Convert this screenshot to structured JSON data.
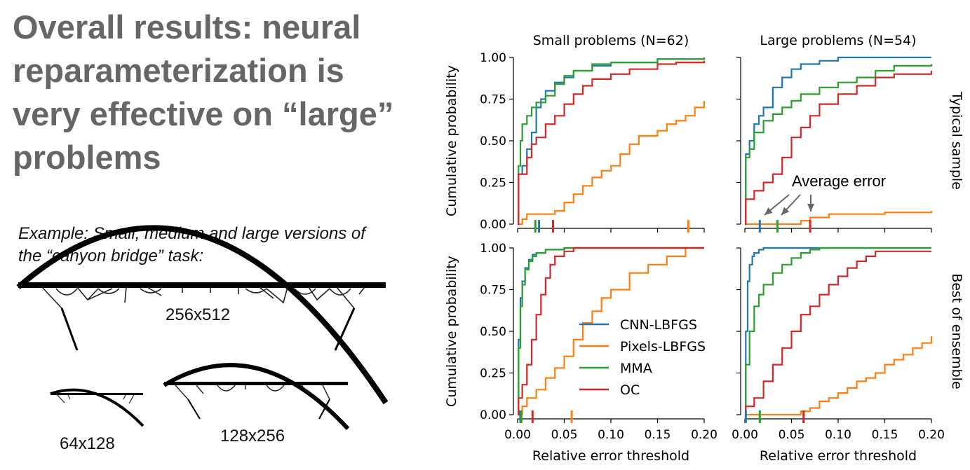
{
  "slide": {
    "title": "Overall results: neural reparameterization is very effective on “large” problems",
    "caption": "Example: Small, medium and large versions of the “canyon bridge” task:",
    "bridges": [
      {
        "label": "256x512"
      },
      {
        "label": "64x128"
      },
      {
        "label": "128x256"
      }
    ]
  },
  "chart_data": {
    "type": "line",
    "subtype": "step-cdf-grid",
    "column_titles": [
      "Small problems (N=62)",
      "Large problems (N=54)"
    ],
    "row_titles": [
      "Typical sample",
      "Best of ensemble"
    ],
    "xlabel": "Relative error threshold",
    "ylabel": "Cumulative probability",
    "xlim": [
      0,
      0.2
    ],
    "ylim": [
      0,
      1
    ],
    "xticks": [
      "0.00",
      "0.05",
      "0.10",
      "0.15",
      "0.20"
    ],
    "yticks": [
      "0.00",
      "0.25",
      "0.50",
      "0.75",
      "1.00"
    ],
    "legend": {
      "location": "lower-right of bottom-left panel",
      "entries": [
        "CNN-LBFGS",
        "Pixels-LBFGS",
        "MMA",
        "OC"
      ]
    },
    "colors": {
      "CNN-LBFGS": "#1f77b4",
      "Pixels-LBFGS": "#ff7f0e",
      "MMA": "#2ca02c",
      "OC": "#d62728"
    },
    "annotation": {
      "text": "Average error",
      "panel": "top-right"
    },
    "panels": [
      {
        "row": "Typical sample",
        "column": "Small problems (N=62)",
        "average_error": {
          "CNN-LBFGS": 0.023,
          "Pixels-LBFGS": 0.183,
          "MMA": 0.019,
          "OC": 0.038
        },
        "series": [
          {
            "name": "CNN-LBFGS",
            "x": [
              0,
              0.001,
              0.005,
              0.01,
              0.015,
              0.02,
              0.025,
              0.03,
              0.04,
              0.05,
              0.06,
              0.08,
              0.1,
              0.15,
              0.2
            ],
            "y": [
              0,
              0.3,
              0.35,
              0.45,
              0.55,
              0.7,
              0.75,
              0.8,
              0.85,
              0.88,
              0.92,
              0.95,
              0.97,
              0.99,
              1.0
            ]
          },
          {
            "name": "Pixels-LBFGS",
            "x": [
              0,
              0.005,
              0.01,
              0.02,
              0.04,
              0.05,
              0.06,
              0.07,
              0.08,
              0.09,
              0.1,
              0.11,
              0.12,
              0.13,
              0.14,
              0.15,
              0.16,
              0.17,
              0.18,
              0.19,
              0.2
            ],
            "y": [
              0,
              0.03,
              0.06,
              0.06,
              0.08,
              0.13,
              0.18,
              0.23,
              0.28,
              0.32,
              0.35,
              0.42,
              0.48,
              0.53,
              0.53,
              0.56,
              0.6,
              0.62,
              0.65,
              0.7,
              0.74
            ]
          },
          {
            "name": "MMA",
            "x": [
              0,
              0.001,
              0.003,
              0.005,
              0.01,
              0.015,
              0.02,
              0.03,
              0.04,
              0.05,
              0.06,
              0.08,
              0.1,
              0.15,
              0.2
            ],
            "y": [
              0,
              0.35,
              0.5,
              0.6,
              0.65,
              0.7,
              0.73,
              0.77,
              0.84,
              0.89,
              0.92,
              0.96,
              0.97,
              0.99,
              1.0
            ]
          },
          {
            "name": "OC",
            "x": [
              0,
              0.001,
              0.01,
              0.015,
              0.02,
              0.03,
              0.04,
              0.05,
              0.06,
              0.07,
              0.08,
              0.1,
              0.12,
              0.15,
              0.17,
              0.2
            ],
            "y": [
              0,
              0.3,
              0.4,
              0.48,
              0.52,
              0.6,
              0.65,
              0.72,
              0.78,
              0.83,
              0.87,
              0.9,
              0.93,
              0.96,
              0.97,
              0.98
            ]
          }
        ]
      },
      {
        "row": "Typical sample",
        "column": "Large problems (N=54)",
        "average_error": {
          "CNN-LBFGS": 0.016,
          "Pixels-LBFGS": 0.07,
          "MMA": 0.035,
          "OC": 0.07
        },
        "series": [
          {
            "name": "CNN-LBFGS",
            "x": [
              0,
              0.001,
              0.005,
              0.01,
              0.015,
              0.02,
              0.03,
              0.04,
              0.05,
              0.06,
              0.08,
              0.1,
              0.2
            ],
            "y": [
              0,
              0.42,
              0.5,
              0.6,
              0.65,
              0.7,
              0.82,
              0.88,
              0.93,
              0.96,
              0.98,
              1.0,
              1.0
            ]
          },
          {
            "name": "Pixels-LBFGS",
            "x": [
              0,
              0.06,
              0.07,
              0.09,
              0.12,
              0.15,
              0.2
            ],
            "y": [
              0,
              0.02,
              0.04,
              0.06,
              0.06,
              0.07,
              0.08
            ]
          },
          {
            "name": "MMA",
            "x": [
              0,
              0.001,
              0.005,
              0.01,
              0.02,
              0.03,
              0.04,
              0.05,
              0.06,
              0.08,
              0.1,
              0.12,
              0.14,
              0.16,
              0.2
            ],
            "y": [
              0,
              0.4,
              0.45,
              0.55,
              0.62,
              0.66,
              0.7,
              0.74,
              0.78,
              0.82,
              0.85,
              0.88,
              0.92,
              0.95,
              0.96
            ]
          },
          {
            "name": "OC",
            "x": [
              0,
              0.001,
              0.01,
              0.02,
              0.03,
              0.04,
              0.05,
              0.06,
              0.07,
              0.08,
              0.1,
              0.12,
              0.14,
              0.16,
              0.2
            ],
            "y": [
              0,
              0.15,
              0.2,
              0.25,
              0.3,
              0.4,
              0.52,
              0.58,
              0.65,
              0.72,
              0.78,
              0.83,
              0.88,
              0.9,
              0.92
            ]
          }
        ]
      },
      {
        "row": "Best of ensemble",
        "column": "Small problems (N=62)",
        "average_error": {
          "CNN-LBFGS": 0.003,
          "Pixels-LBFGS": 0.058,
          "MMA": 0.004,
          "OC": 0.016
        },
        "series": [
          {
            "name": "CNN-LBFGS",
            "x": [
              0,
              0.001,
              0.003,
              0.005,
              0.008,
              0.012,
              0.016,
              0.02,
              0.03,
              0.05,
              0.2
            ],
            "y": [
              0,
              0.45,
              0.7,
              0.8,
              0.88,
              0.93,
              0.96,
              0.97,
              0.99,
              1.0,
              1.0
            ]
          },
          {
            "name": "Pixels-LBFGS",
            "x": [
              0,
              0.005,
              0.01,
              0.02,
              0.03,
              0.04,
              0.05,
              0.06,
              0.07,
              0.08,
              0.09,
              0.1,
              0.12,
              0.14,
              0.16,
              0.18,
              0.2
            ],
            "y": [
              0,
              0.05,
              0.1,
              0.15,
              0.22,
              0.28,
              0.35,
              0.45,
              0.55,
              0.62,
              0.7,
              0.75,
              0.85,
              0.9,
              0.95,
              1.0,
              1.0
            ]
          },
          {
            "name": "MMA",
            "x": [
              0,
              0.001,
              0.003,
              0.005,
              0.008,
              0.012,
              0.016,
              0.02,
              0.03,
              0.05,
              0.2
            ],
            "y": [
              0,
              0.4,
              0.65,
              0.78,
              0.87,
              0.92,
              0.95,
              0.97,
              0.99,
              1.0,
              1.0
            ]
          },
          {
            "name": "OC",
            "x": [
              0,
              0.001,
              0.005,
              0.01,
              0.015,
              0.02,
              0.025,
              0.03,
              0.035,
              0.04,
              0.05,
              0.06,
              0.2
            ],
            "y": [
              0,
              0.1,
              0.18,
              0.3,
              0.45,
              0.6,
              0.72,
              0.82,
              0.9,
              0.95,
              0.98,
              1.0,
              1.0
            ]
          }
        ]
      },
      {
        "row": "Best of ensemble",
        "column": "Large problems (N=54)",
        "average_error": {
          "CNN-LBFGS": 0.001,
          "Pixels-LBFGS": 0.063,
          "MMA": 0.016,
          "OC": 0.063
        },
        "series": [
          {
            "name": "CNN-LBFGS",
            "x": [
              0,
              0.001,
              0.003,
              0.005,
              0.008,
              0.01,
              0.015,
              0.02,
              0.2
            ],
            "y": [
              0,
              0.5,
              0.8,
              0.9,
              0.95,
              0.97,
              0.99,
              1.0,
              1.0
            ]
          },
          {
            "name": "Pixels-LBFGS",
            "x": [
              0,
              0.06,
              0.07,
              0.08,
              0.09,
              0.1,
              0.11,
              0.12,
              0.13,
              0.14,
              0.15,
              0.16,
              0.17,
              0.18,
              0.19,
              0.2
            ],
            "y": [
              0,
              0.02,
              0.04,
              0.08,
              0.1,
              0.13,
              0.16,
              0.2,
              0.22,
              0.25,
              0.3,
              0.33,
              0.36,
              0.4,
              0.43,
              0.47
            ]
          },
          {
            "name": "MMA",
            "x": [
              0,
              0.001,
              0.005,
              0.01,
              0.015,
              0.02,
              0.03,
              0.04,
              0.05,
              0.06,
              0.07,
              0.08,
              0.2
            ],
            "y": [
              0,
              0.3,
              0.5,
              0.65,
              0.72,
              0.78,
              0.85,
              0.9,
              0.94,
              0.97,
              0.99,
              1.0,
              1.0
            ]
          },
          {
            "name": "OC",
            "x": [
              0,
              0.001,
              0.01,
              0.02,
              0.03,
              0.04,
              0.05,
              0.06,
              0.07,
              0.08,
              0.09,
              0.1,
              0.11,
              0.12,
              0.13,
              0.14,
              0.2
            ],
            "y": [
              0,
              0.05,
              0.1,
              0.2,
              0.3,
              0.4,
              0.5,
              0.6,
              0.65,
              0.72,
              0.78,
              0.83,
              0.88,
              0.92,
              0.95,
              0.98,
              0.98
            ]
          }
        ]
      }
    ]
  }
}
